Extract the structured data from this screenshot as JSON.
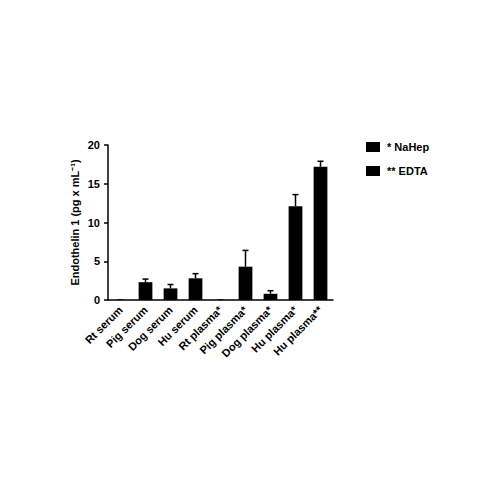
{
  "chart_data": {
    "type": "bar",
    "y_label": "Endothelin 1 (pg x mL⁻¹)",
    "categories": [
      "Rt serum",
      "Pig serum",
      "Dog serum",
      "Hu serum",
      "Rt plasma*",
      "Pig plasma*",
      "Dog plasma*",
      "Hu plasma*",
      "Hu plasma**"
    ],
    "values": [
      0,
      2.3,
      1.5,
      2.8,
      0,
      4.3,
      0.8,
      12.1,
      17.2
    ],
    "errors": [
      0,
      0.4,
      0.5,
      0.6,
      0,
      2.1,
      0.4,
      1.5,
      0.7
    ],
    "color": "#000000",
    "ylim": [
      0,
      20
    ],
    "yticks": [
      0,
      5,
      10,
      15,
      20
    ],
    "grid": false,
    "annotations": [
      "* NaHep",
      "** EDTA"
    ]
  }
}
